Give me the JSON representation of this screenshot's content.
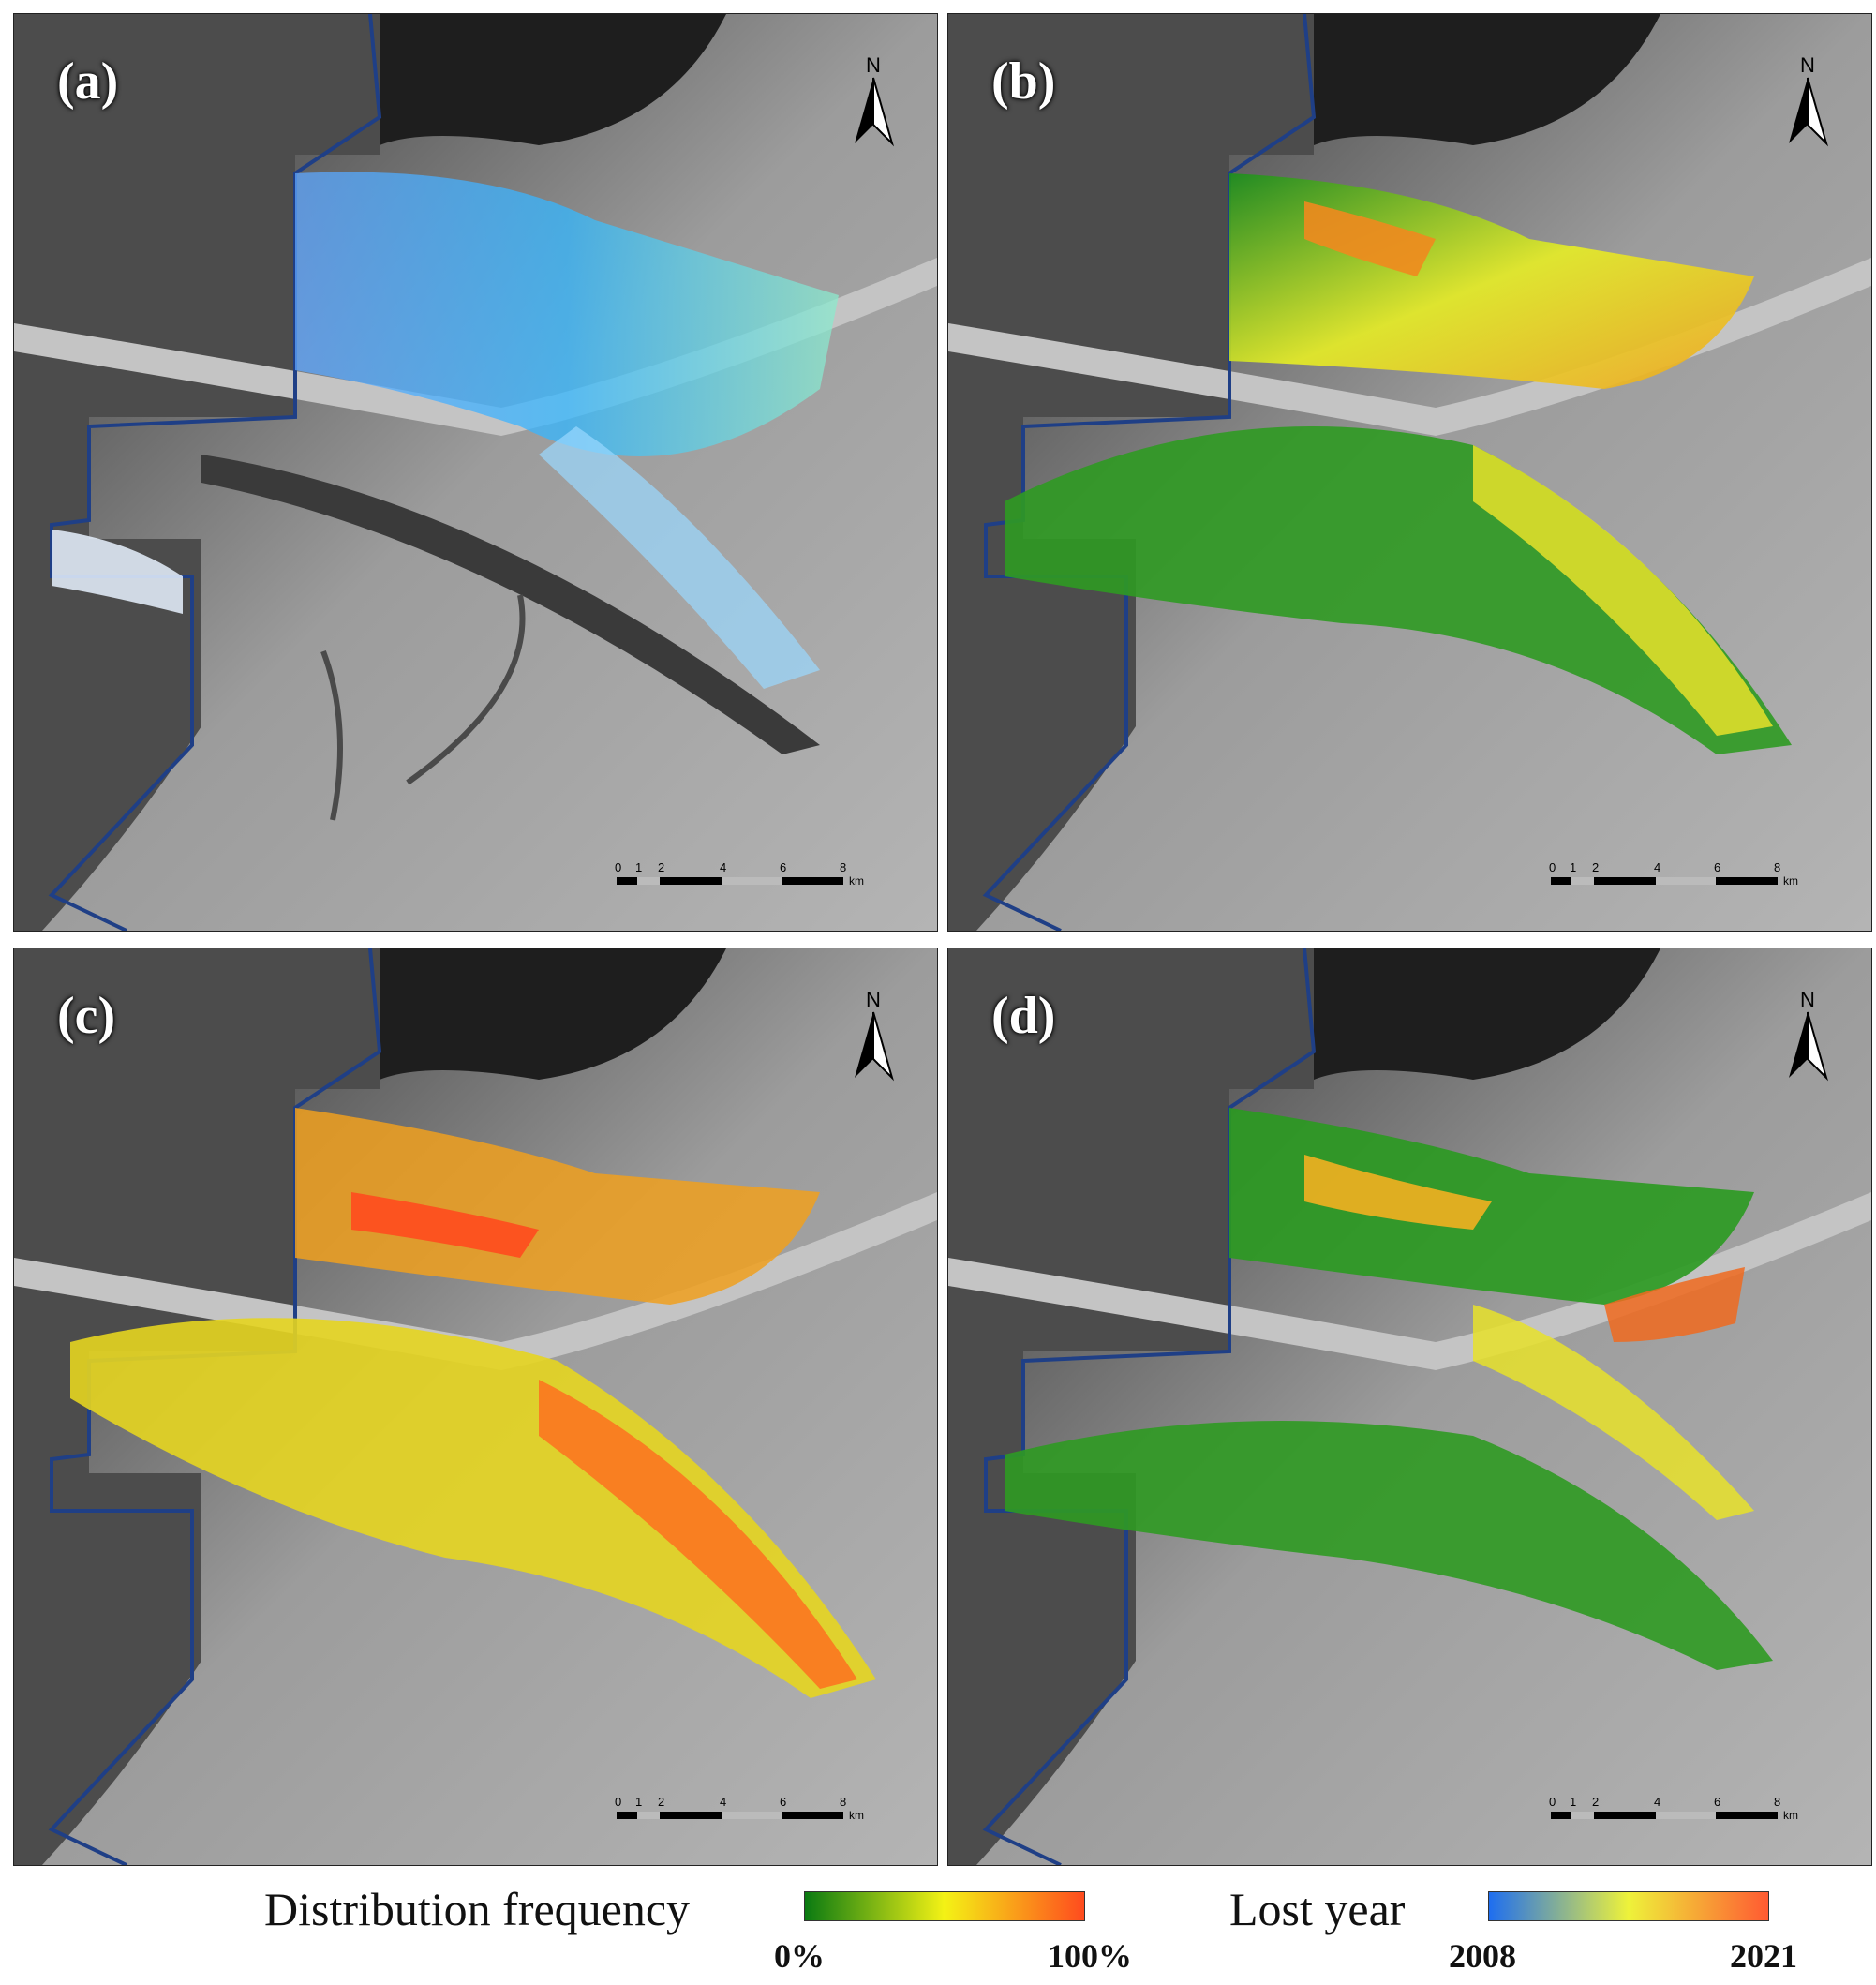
{
  "panels": [
    {
      "id": "a",
      "label": "(a)",
      "layer": "lost-year"
    },
    {
      "id": "b",
      "label": "(b)",
      "layer": "frequency-mixed"
    },
    {
      "id": "c",
      "label": "(c)",
      "layer": "frequency-high"
    },
    {
      "id": "d",
      "label": "(d)",
      "layer": "frequency-low"
    }
  ],
  "north_arrow": {
    "label": "N",
    "icon": "north-arrow-icon"
  },
  "scale_bar": {
    "ticks": [
      "0",
      "1",
      "2",
      "4",
      "6",
      "8"
    ],
    "unit": "km"
  },
  "legend": {
    "frequency": {
      "title": "Distribution frequency",
      "min": "0%",
      "max": "100%",
      "colors": [
        "#0a7a12",
        "#f4f215",
        "#ff4b1e"
      ]
    },
    "lost_year": {
      "title": "Lost year",
      "min": "2008",
      "max": "2021",
      "colors": [
        "#1e6ef0",
        "#eef23a",
        "#ff5a32"
      ]
    }
  },
  "colors": {
    "boundary": "#1f3f86",
    "water": "#8d8d8d",
    "land": "#5a5a5a"
  }
}
